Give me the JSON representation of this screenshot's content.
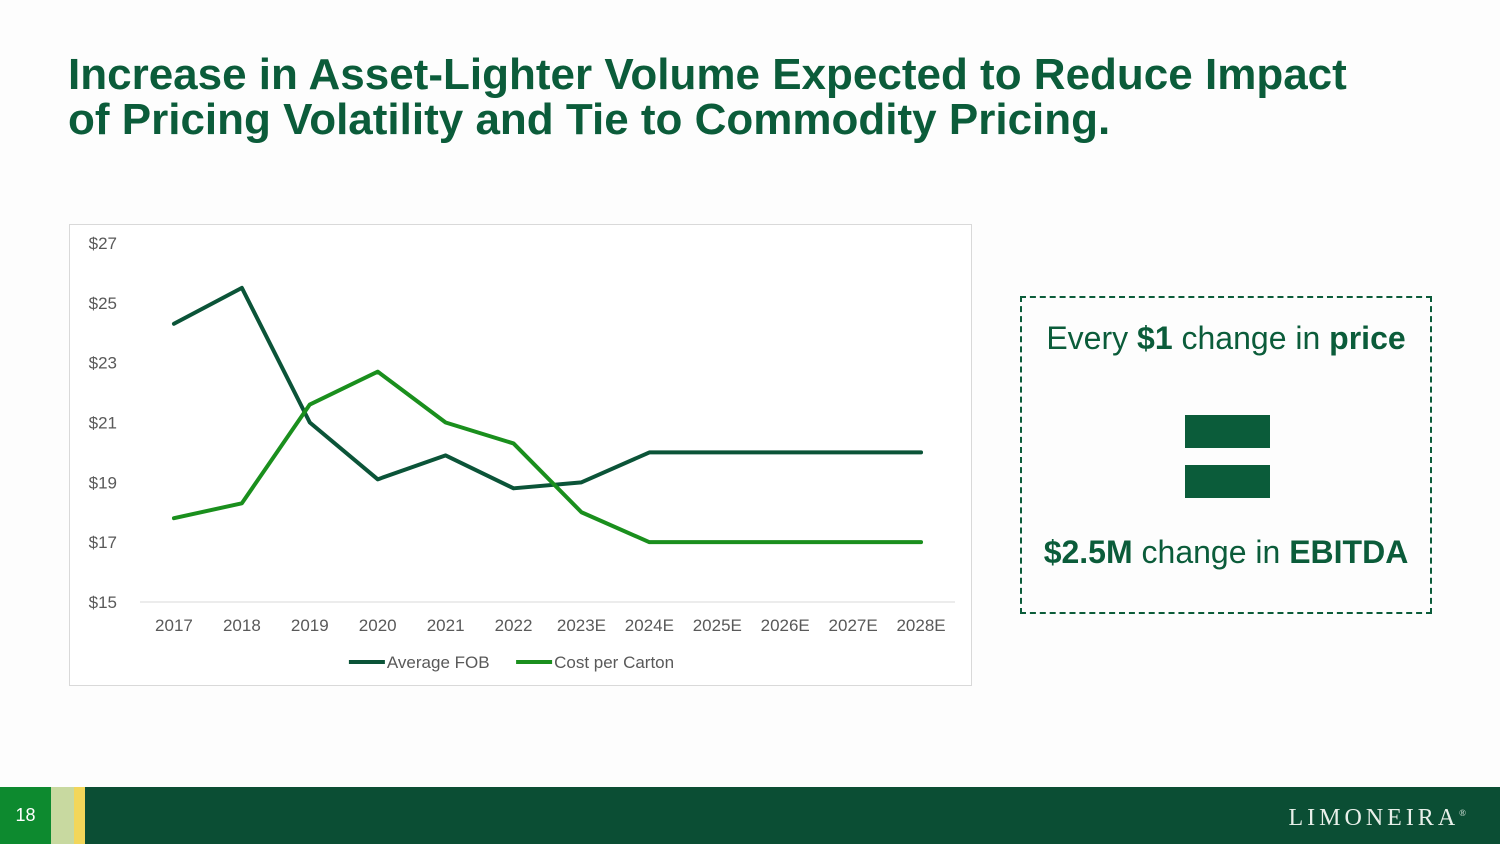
{
  "title": {
    "line1": "Increase in Asset-Lighter Volume Expected to Reduce Impact",
    "line2": "of Pricing Volatility and Tie to Commodity Pricing."
  },
  "chart_data": {
    "type": "line",
    "title": "",
    "xlabel": "",
    "ylabel": "",
    "categories": [
      "2017",
      "2018",
      "2019",
      "2020",
      "2021",
      "2022",
      "2023E",
      "2024E",
      "2025E",
      "2026E",
      "2027E",
      "2028E"
    ],
    "ylim": [
      15,
      27
    ],
    "yticks": [
      15,
      17,
      19,
      21,
      23,
      25,
      27
    ],
    "ytick_labels": [
      "$15",
      "$17",
      "$19",
      "$21",
      "$23",
      "$25",
      "$27"
    ],
    "legend_position": "bottom",
    "series": [
      {
        "name": "Average FOB",
        "color": "#0b5438",
        "values": [
          24.3,
          25.5,
          21.0,
          19.1,
          19.9,
          18.8,
          19.0,
          20.0,
          20.0,
          20.0,
          20.0,
          20.0
        ]
      },
      {
        "name": "Cost per Carton",
        "color": "#1a8f1d",
        "values": [
          17.8,
          18.3,
          21.6,
          22.7,
          21.0,
          20.3,
          18.0,
          17.0,
          17.0,
          17.0,
          17.0,
          17.0
        ]
      }
    ]
  },
  "callout": {
    "line1_prefix": "Every ",
    "line1_amount": "$1",
    "line1_mid": " change in ",
    "line1_word": "price",
    "line2_amount": "$2.5M",
    "line2_mid": " change in ",
    "line2_word": "EBITDA"
  },
  "footer": {
    "page_number": "18",
    "logo_text": "LIMONEIRA",
    "logo_mark": "®"
  },
  "colors": {
    "brand_dark_green": "#0b4e34",
    "title_green": "#0b5c3a",
    "accent_green": "#0d8a2f",
    "accent_light": "#c8d9a0",
    "accent_yellow": "#f2d65a"
  }
}
